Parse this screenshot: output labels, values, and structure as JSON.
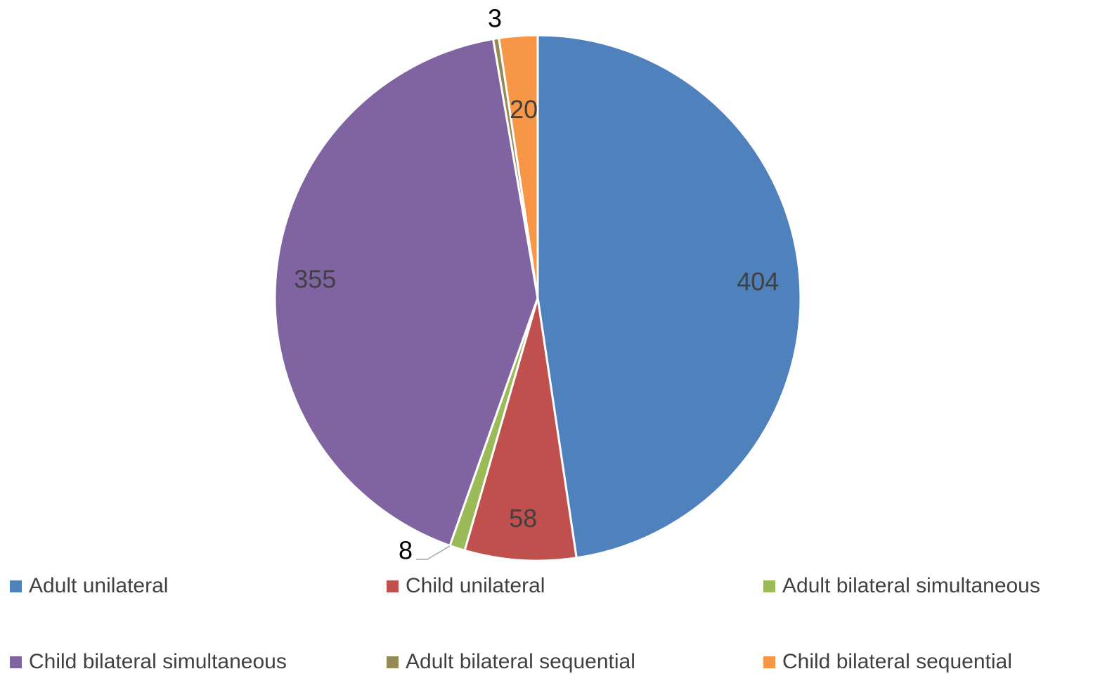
{
  "chart_data": {
    "type": "pie",
    "title": "",
    "categories": [
      "Adult unilateral",
      "Child unilateral",
      "Adult bilateral simultaneous",
      "Child bilateral simultaneous",
      "Adult bilateral sequential",
      "Child bilateral sequential"
    ],
    "values": [
      404,
      58,
      8,
      355,
      3,
      20
    ],
    "data_labels": [
      "404",
      "58",
      "8",
      "355",
      "3",
      "20"
    ],
    "colors": [
      "#4f81bd",
      "#c0504d",
      "#9bbb59",
      "#8064a2",
      "#948a54",
      "#f79646"
    ],
    "legend_position": "bottom",
    "start_angle": "12 o'clock",
    "direction": "clockwise"
  }
}
